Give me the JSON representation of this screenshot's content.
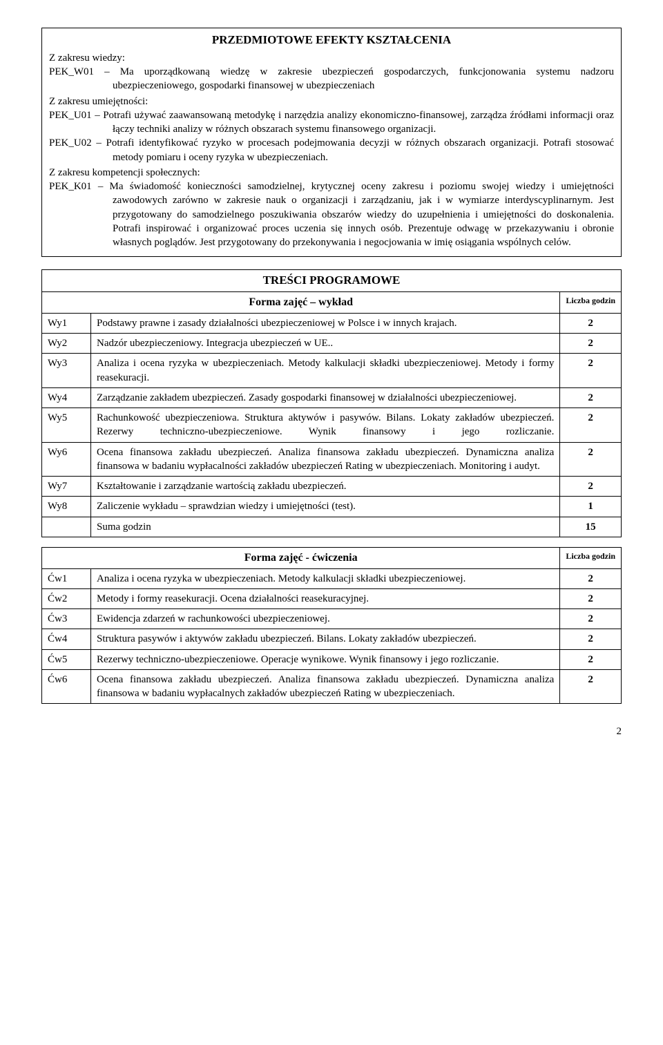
{
  "effects": {
    "title": "PRZEDMIOTOWE EFEKTY KSZTAŁCENIA",
    "wiedza_label": "Z zakresu wiedzy:",
    "wiedza": [
      {
        "code": "PEK_W01",
        "text": " – Ma uporządkowaną wiedzę w zakresie ubezpieczeń gospodarczych, funkcjonowania systemu nadzoru ubezpieczeniowego, gospodarki finansowej w ubezpieczeniach"
      }
    ],
    "umiej_label": "Z zakresu umiejętności:",
    "umiej": [
      {
        "code": "PEK_U01",
        "text": " – Potrafi używać zaawansowaną metodykę i narzędzia analizy ekonomiczno-finansowej, zarządza źródłami informacji oraz łączy techniki analizy w różnych obszarach systemu finansowego organizacji."
      },
      {
        "code": "PEK_U02",
        "text": " – Potrafi identyfikować ryzyko w procesach podejmowania decyzji w różnych obszarach organizacji. Potrafi stosować metody pomiaru i oceny ryzyka w ubezpieczeniach."
      }
    ],
    "komp_label": "Z zakresu kompetencji społecznych:",
    "komp": [
      {
        "code": "PEK_K01",
        "text": " – Ma świadomość konieczności samodzielnej, krytycznej oceny zakresu i poziomu swojej wiedzy i umiejętności zawodowych zarówno w zakresie nauk o organizacji i zarządzaniu, jak i w wymiarze interdyscyplinarnym. Jest przygotowany do samodzielnego poszukiwania obszarów wiedzy do uzupełnienia i umiejętności do doskonalenia. Potrafi inspirować i organizować proces uczenia się innych osób. Prezentuje odwagę w przekazywaniu i obronie własnych poglądów. Jest przygotowany do przekonywania i negocjowania w imię osiągania wspólnych celów."
      }
    ]
  },
  "prog_title": "TREŚCI PROGRAMOWE",
  "lecture": {
    "header": "Forma zajęć – wykład",
    "hours_header": "Liczba godzin",
    "rows": [
      {
        "code": "Wy1",
        "desc": "Podstawy prawne i zasady działalności ubezpieczeniowej w Polsce i w innych krajach.",
        "hours": "2"
      },
      {
        "code": "Wy2",
        "desc": "Nadzór ubezpieczeniowy. Integracja ubezpieczeń w UE..",
        "hours": "2"
      },
      {
        "code": "Wy3",
        "desc": "Analiza i ocena ryzyka w ubezpieczeniach. Metody kalkulacji składki ubezpieczeniowej. Metody i formy reasekuracji.",
        "hours": "2"
      },
      {
        "code": "Wy4",
        "desc": "Zarządzanie zakładem ubezpieczeń. Zasady gospodarki finansowej w działalności ubezpieczeniowej.",
        "hours": "2"
      },
      {
        "code": "Wy5",
        "desc": "Rachunkowość ubezpieczeniowa. Struktura aktywów i pasywów. Bilans. Lokaty zakładów ubezpieczeń. Rezerwy techniczno-ubezpieczeniowe. Wynik finansowy i jego rozliczanie.",
        "hours": "2"
      },
      {
        "code": "Wy6",
        "desc": "Ocena finansowa zakładu ubezpieczeń. Analiza finansowa zakładu ubezpieczeń. Dynamiczna analiza finansowa w badaniu wypłacalności zakładów ubezpieczeń Rating w ubezpieczeniach. Monitoring i audyt.",
        "hours": "2"
      },
      {
        "code": "Wy7",
        "desc": "Kształtowanie i zarządzanie wartością zakładu ubezpieczeń.",
        "hours": "2"
      },
      {
        "code": "Wy8",
        "desc": "Zaliczenie wykładu – sprawdzian wiedzy i umiejętności (test).",
        "hours": "1"
      }
    ],
    "sum_label": "Suma godzin",
    "sum_value": "15"
  },
  "exercises": {
    "header": "Forma zajęć - ćwiczenia",
    "hours_header": "Liczba godzin",
    "rows": [
      {
        "code": "Ćw1",
        "desc": "Analiza i ocena ryzyka w ubezpieczeniach. Metody kalkulacji składki ubezpieczeniowej.",
        "hours": "2"
      },
      {
        "code": "Ćw2",
        "desc": "Metody i formy reasekuracji. Ocena działalności reasekuracyjnej.",
        "hours": "2"
      },
      {
        "code": "Ćw3",
        "desc": "Ewidencja zdarzeń w rachunkowości ubezpieczeniowej.",
        "hours": "2"
      },
      {
        "code": "Ćw4",
        "desc": "Struktura pasywów i aktywów zakładu ubezpieczeń. Bilans. Lokaty zakładów ubezpieczeń.",
        "hours": "2"
      },
      {
        "code": "Ćw5",
        "desc": "Rezerwy techniczno-ubezpieczeniowe. Operacje wynikowe. Wynik finansowy i jego rozliczanie.",
        "hours": "2"
      },
      {
        "code": "Ćw6",
        "desc": "Ocena finansowa zakładu ubezpieczeń. Analiza finansowa zakładu ubezpieczeń. Dynamiczna analiza finansowa w badaniu wypłacalnych zakładów ubezpieczeń Rating w ubezpieczeniach.",
        "hours": "2"
      }
    ]
  },
  "page_number": "2"
}
